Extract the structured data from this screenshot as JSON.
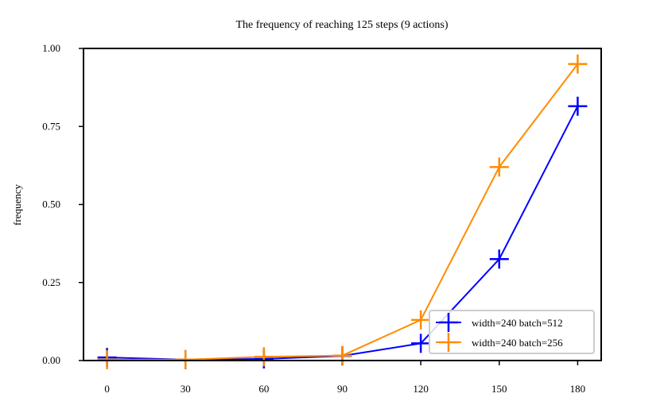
{
  "chart_data": {
    "type": "line",
    "title": "The frequency of reaching 125 steps (9 actions)",
    "xlabel": "",
    "ylabel": "frequency",
    "x": [
      0,
      30,
      60,
      90,
      120,
      150,
      180
    ],
    "xticks": [
      "0",
      "30",
      "60",
      "90",
      "120",
      "150",
      "180"
    ],
    "yticks": [
      "0.00",
      "0.25",
      "0.50",
      "0.75",
      "1.00"
    ],
    "xlim": [
      -9,
      189
    ],
    "ylim": [
      0,
      1
    ],
    "grid": false,
    "legend_position": "lower-right",
    "marker": "plus",
    "series": [
      {
        "name": "width=240 batch=512",
        "color": "#0000ff",
        "values": [
          0.01,
          0.003,
          0.005,
          0.015,
          0.055,
          0.325,
          0.815
        ]
      },
      {
        "name": "width=240 batch=256",
        "color": "#ff8c00",
        "values": [
          0.003,
          0.003,
          0.012,
          0.016,
          0.13,
          0.62,
          0.95
        ]
      }
    ]
  }
}
